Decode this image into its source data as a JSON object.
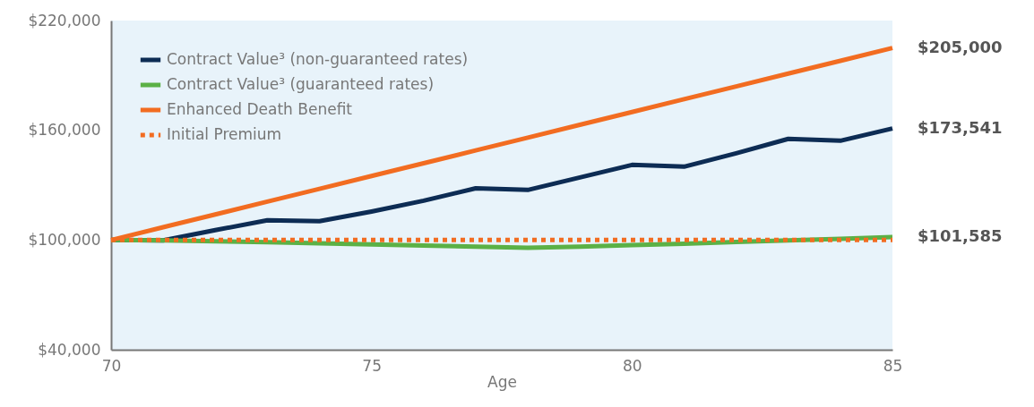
{
  "chart_data": {
    "type": "line",
    "xlabel": "Age",
    "x": [
      70,
      71,
      72,
      73,
      74,
      75,
      76,
      77,
      78,
      79,
      80,
      81,
      82,
      83,
      84,
      85
    ],
    "series": [
      {
        "name": "Contract Value³ (non-guaranteed rates)",
        "color": "#0d2c54",
        "values": [
          100000,
          99800,
          105400,
          110800,
          110300,
          115600,
          121500,
          128300,
          127400,
          134200,
          141100,
          140100,
          147400,
          155300,
          154300,
          161000
        ]
      },
      {
        "name": "Contract Value³ (guaranteed rates)",
        "color": "#5bb146",
        "values": [
          100000,
          99800,
          99300,
          98800,
          98200,
          97600,
          97000,
          96400,
          95700,
          96400,
          97200,
          98000,
          98900,
          99800,
          100700,
          101585
        ]
      },
      {
        "name": "Enhanced Death Benefit",
        "color": "#f26c21",
        "values": [
          100000,
          107000,
          114000,
          121000,
          128000,
          135000,
          142000,
          149000,
          156000,
          163000,
          170000,
          177000,
          184000,
          191000,
          198000,
          205000
        ]
      },
      {
        "name": "Initial Premium",
        "color": "#f26c21",
        "line_style": "dotted",
        "x": [
          70,
          85
        ],
        "values": [
          100000,
          100000
        ]
      }
    ],
    "annotations": [
      "$173,541",
      "$101,585",
      "$205,000"
    ],
    "xlim": [
      70,
      85
    ],
    "xticks": [
      70,
      75,
      80,
      85
    ],
    "ylim": [
      40000,
      220000
    ],
    "yticks": [
      {
        "value": 40000,
        "label": "$40,000"
      },
      {
        "value": 100000,
        "label": "$100,000"
      },
      {
        "value": 160000,
        "label": "$160,000"
      },
      {
        "value": 220000,
        "label": "$220,000"
      }
    ],
    "grid": false,
    "legend": "top left",
    "line_style": "solid",
    "marker": "none"
  }
}
